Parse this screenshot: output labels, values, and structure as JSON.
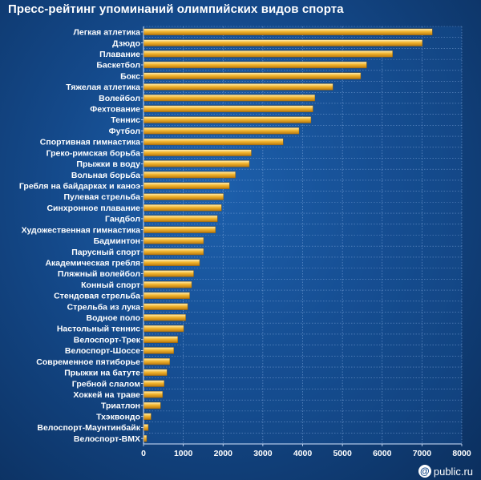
{
  "chart_data": {
    "type": "bar",
    "orientation": "horizontal",
    "title": "Пресс-рейтинг упоминаний олимпийских видов спорта",
    "xlabel": "",
    "ylabel": "",
    "xlim": [
      0,
      8000
    ],
    "xticks": [
      0,
      1000,
      2000,
      3000,
      4000,
      5000,
      6000,
      7000,
      8000
    ],
    "grid": true,
    "bar_color": "#f2b52e",
    "categories": [
      "Легкая атлетика",
      "Дзюдо",
      "Плавание",
      "Баскетбол",
      "Бокс",
      "Тяжелая атлетика",
      "Волейбол",
      "Фехтование",
      "Теннис",
      "Футбол",
      "Спортивная гимнастика",
      "Греко-римская борьба",
      "Прыжки в воду",
      "Вольная борьба",
      "Гребля на байдарках и каноэ",
      "Пулевая стрельба",
      "Синхронное плавание",
      "Гандбол",
      "Художественная гимнастика",
      "Бадминтон",
      "Парусный спорт",
      "Академическая гребля",
      "Пляжный волейбол",
      "Конный спорт",
      "Стендовая стрельба",
      "Стрельба из лука",
      "Водное поло",
      "Настольный теннис",
      "Велоспорт-Трек",
      "Велоспорт-Шоссе",
      "Современное пятиборье",
      "Прыжки на батуте",
      "Гребной слалом",
      "Хоккей на траве",
      "Триатлон",
      "Тхэквондо",
      "Велоспорт-Маунтинбайк",
      "Велоспорт-BMX"
    ],
    "values": [
      7250,
      7000,
      6250,
      5600,
      5450,
      4750,
      4300,
      4250,
      4200,
      3900,
      3500,
      2700,
      2650,
      2300,
      2150,
      2000,
      1950,
      1850,
      1800,
      1500,
      1500,
      1400,
      1250,
      1200,
      1150,
      1100,
      1050,
      1000,
      850,
      750,
      650,
      580,
      510,
      470,
      420,
      180,
      110,
      70
    ]
  },
  "brand": {
    "icon": "@",
    "text": "public.ru"
  }
}
